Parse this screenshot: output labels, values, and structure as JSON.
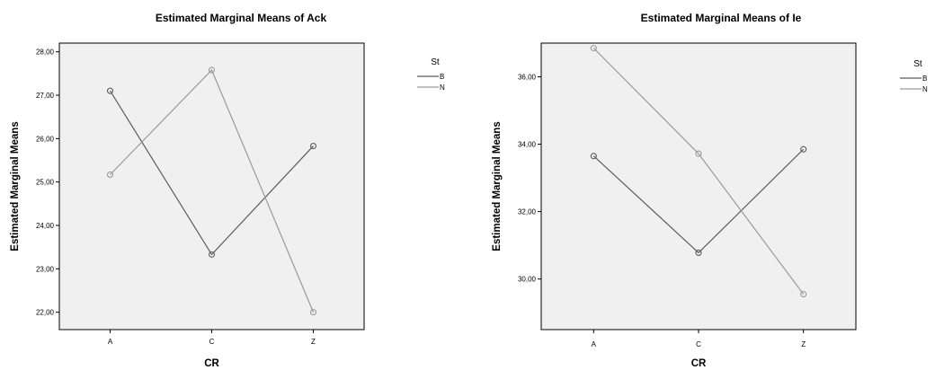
{
  "chart_data": [
    {
      "type": "line",
      "title": "Estimated Marginal Means of Ack",
      "xlabel": "CR",
      "ylabel": "Estimated Marginal Means",
      "categories": [
        "A",
        "C",
        "Z"
      ],
      "ylim": [
        21.6,
        28.2
      ],
      "yticks": [
        "22,00",
        "23,00",
        "24,00",
        "25,00",
        "26,00",
        "27,00",
        "28,00"
      ],
      "ytick_values": [
        22,
        23,
        24,
        25,
        26,
        27,
        28
      ],
      "legend_title": "St",
      "legend_position": "right",
      "grid": false,
      "series": [
        {
          "name": "B",
          "values": [
            27.1,
            23.33,
            25.83
          ],
          "color": "#5c5c5c"
        },
        {
          "name": "N",
          "values": [
            25.17,
            27.58,
            22.0
          ],
          "color": "#9a9a9a"
        }
      ]
    },
    {
      "type": "line",
      "title": "Estimated Marginal Means of Ie",
      "xlabel": "CR",
      "ylabel": "Estimated Marginal Means",
      "categories": [
        "A",
        "C",
        "Z"
      ],
      "ylim": [
        28.5,
        37.0
      ],
      "yticks": [
        "30,00",
        "32,00",
        "34,00",
        "36,00"
      ],
      "ytick_values": [
        30,
        32,
        34,
        36
      ],
      "legend_title": "St",
      "legend_position": "right",
      "grid": false,
      "series": [
        {
          "name": "B",
          "values": [
            33.65,
            30.78,
            33.85
          ],
          "color": "#5c5c5c"
        },
        {
          "name": "N",
          "values": [
            36.85,
            33.72,
            29.55
          ],
          "color": "#9a9a9a"
        }
      ]
    }
  ]
}
